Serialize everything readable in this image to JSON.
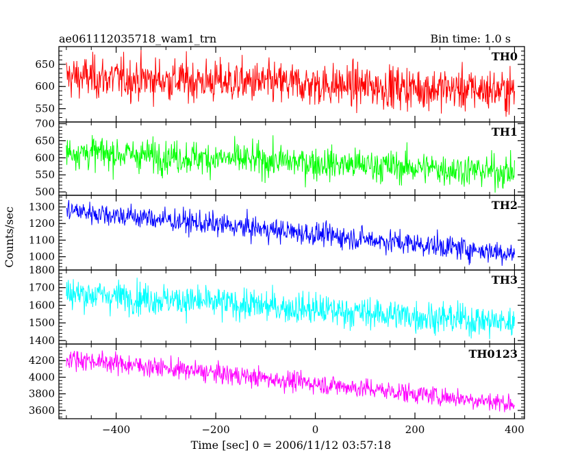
{
  "header": {
    "left_title": "ae061112035718_wam1_trn",
    "right_title": "Bin time: 1.0 s"
  },
  "chart_data": {
    "type": "line",
    "title": "ae061112035718_wam1_trn",
    "subtitle": "Bin time: 1.0 s",
    "xlabel": "Time [sec] 0 = 2006/11/12 03:57:18",
    "ylabel": "Counts/sec",
    "xlim": [
      -515,
      420
    ],
    "x_ticks": [
      -400,
      -200,
      0,
      200,
      400
    ],
    "x_tick_labels": [
      "−400",
      "−200",
      "0",
      "200",
      "400"
    ],
    "x_range": [
      -500,
      400
    ],
    "bin_time": 1.0,
    "grid": false,
    "panels": [
      {
        "name": "TH0",
        "color": "#ff0000",
        "ylim": [
          520,
          690
        ],
        "yticks": [
          550,
          600,
          650
        ],
        "trend": {
          "x": [
            -500,
            400
          ],
          "y": [
            622,
            590
          ]
        },
        "noise_sd": 24
      },
      {
        "name": "TH1",
        "color": "#00ff00",
        "ylim": [
          490,
          705
        ],
        "yticks": [
          500,
          550,
          600,
          650,
          700
        ],
        "trend": {
          "x": [
            -500,
            400
          ],
          "y": [
            618,
            558
          ]
        },
        "noise_sd": 24
      },
      {
        "name": "TH2",
        "color": "#0000ff",
        "ylim": [
          920,
          1370
        ],
        "yticks": [
          1000,
          1100,
          1200,
          1300
        ],
        "trend": {
          "x": [
            -500,
            400
          ],
          "y": [
            1280,
            1020
          ]
        },
        "noise_sd": 35
      },
      {
        "name": "TH3",
        "color": "#00ffff",
        "ylim": [
          1380,
          1800
        ],
        "yticks": [
          1400,
          1500,
          1600,
          1700,
          1800
        ],
        "trend": {
          "x": [
            -500,
            400
          ],
          "y": [
            1670,
            1500
          ]
        },
        "noise_sd": 45
      },
      {
        "name": "TH0123",
        "color": "#ff00ff",
        "ylim": [
          3500,
          4400
        ],
        "yticks": [
          3600,
          3800,
          4000,
          4200
        ],
        "trend": {
          "x": [
            -500,
            400
          ],
          "y": [
            4230,
            3680
          ]
        },
        "noise_sd": 60
      }
    ]
  }
}
